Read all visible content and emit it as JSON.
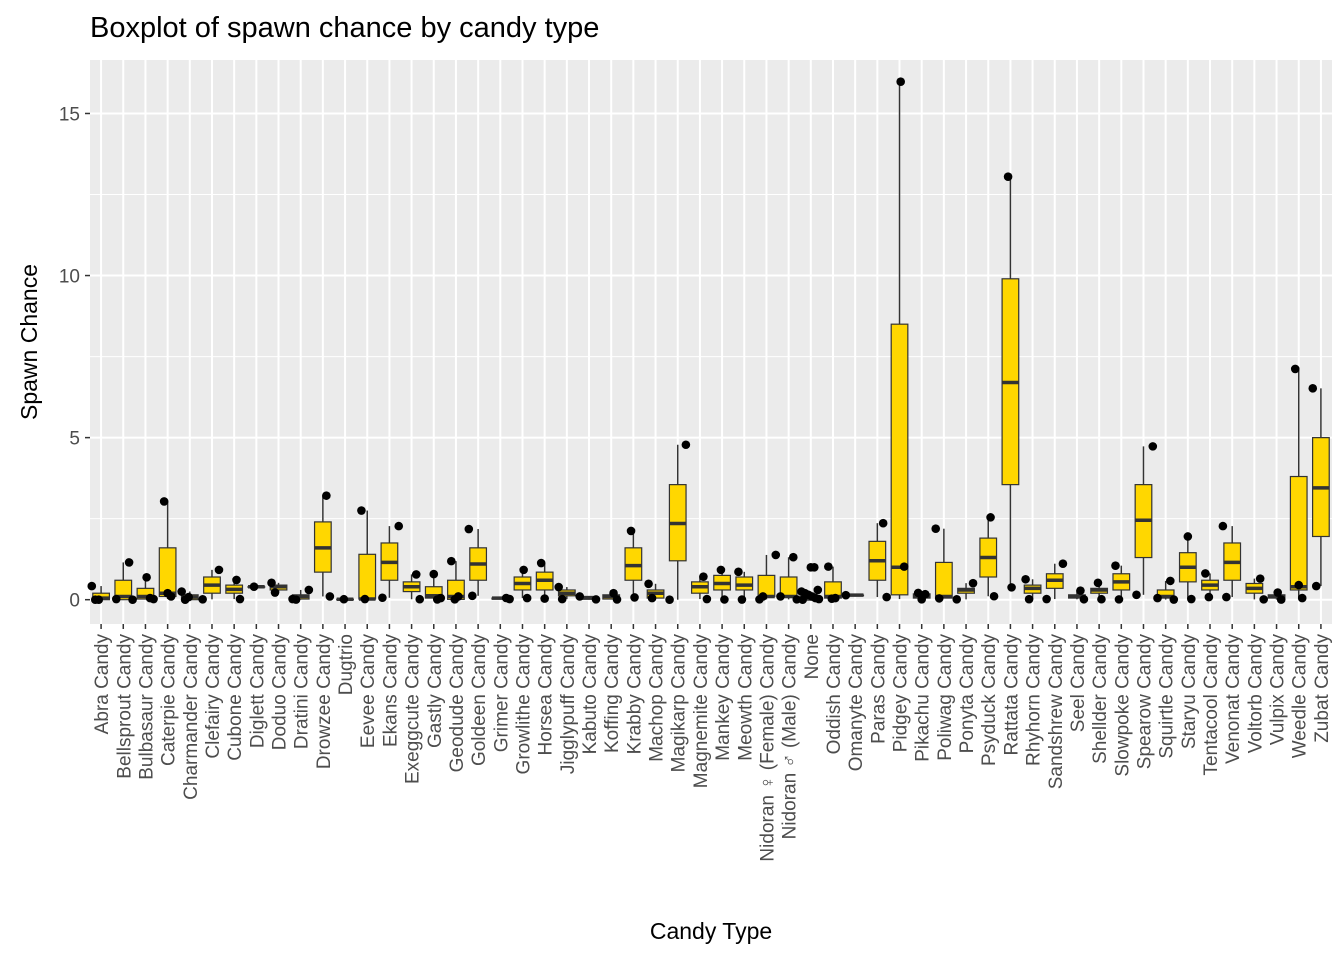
{
  "chart_data": {
    "type": "box",
    "title": "Boxplot of spawn chance by candy type",
    "xlabel": "Candy Type",
    "ylabel": "Spawn Chance",
    "ylim": [
      -0.75,
      16.65
    ],
    "y_ticks": [
      0,
      5,
      10,
      15
    ],
    "grid": true,
    "colors": {
      "panel": "#ebebeb",
      "grid": "#ffffff",
      "box_fill": "#ffd700",
      "box_stroke": "#333333",
      "point": "#000000"
    },
    "categories": [
      {
        "name": "Abra Candy",
        "q1": 0.0,
        "median": 0.05,
        "q3": 0.2,
        "wlo": 0.0,
        "whi": 0.42,
        "points": [
          0.42,
          0.0,
          0.0
        ]
      },
      {
        "name": "Bellsprout Candy",
        "q1": 0.0,
        "median": 0.1,
        "q3": 0.6,
        "wlo": 0.0,
        "whi": 1.15,
        "points": [
          1.15,
          0.0,
          0.02
        ]
      },
      {
        "name": "Bulbasaur Candy",
        "q1": 0.02,
        "median": 0.1,
        "q3": 0.35,
        "wlo": 0.01,
        "whi": 0.69,
        "points": [
          0.69,
          0.05,
          0.02
        ]
      },
      {
        "name": "Caterpie Candy",
        "q1": 0.1,
        "median": 0.2,
        "q3": 1.6,
        "wlo": 0.02,
        "whi": 3.03,
        "points": [
          3.03,
          0.2,
          0.1
        ]
      },
      {
        "name": "Charmander Candy",
        "q1": 0.0,
        "median": 0.08,
        "q3": 0.15,
        "wlo": 0.0,
        "whi": 0.253,
        "points": [
          0.25,
          0.0,
          0.08
        ]
      },
      {
        "name": "Clefairy Candy",
        "q1": 0.2,
        "median": 0.45,
        "q3": 0.7,
        "wlo": 0.012,
        "whi": 0.92,
        "points": [
          0.92,
          0.012
        ]
      },
      {
        "name": "Cubone Candy",
        "q1": 0.2,
        "median": 0.32,
        "q3": 0.45,
        "wlo": 0.02,
        "whi": 0.61,
        "points": [
          0.61,
          0.02
        ]
      },
      {
        "name": "Diglett Candy",
        "q1": 0.4,
        "median": 0.4,
        "q3": 0.4,
        "wlo": 0.4,
        "whi": 0.4,
        "points": [
          0.4
        ]
      },
      {
        "name": "Doduo Candy",
        "q1": 0.3,
        "median": 0.4,
        "q3": 0.45,
        "wlo": 0.22,
        "whi": 0.52,
        "points": [
          0.52,
          0.22
        ]
      },
      {
        "name": "Dratini Candy",
        "q1": 0.02,
        "median": 0.1,
        "q3": 0.15,
        "wlo": 0.002,
        "whi": 0.3,
        "points": [
          0.3,
          0.02,
          0.002
        ]
      },
      {
        "name": "Drowzee Candy",
        "q1": 0.85,
        "median": 1.6,
        "q3": 2.4,
        "wlo": 0.1,
        "whi": 3.21,
        "points": [
          3.21,
          0.1
        ]
      },
      {
        "name": "Dugtrio",
        "q1": 0.014,
        "median": 0.014,
        "q3": 0.014,
        "wlo": 0.014,
        "whi": 0.014,
        "points": [
          0.014
        ]
      },
      {
        "name": "Eevee Candy",
        "q1": 0.02,
        "median": 0.02,
        "q3": 1.4,
        "wlo": 0.02,
        "whi": 2.75,
        "points": [
          2.75,
          0.02
        ]
      },
      {
        "name": "Ekans Candy",
        "q1": 0.6,
        "median": 1.15,
        "q3": 1.75,
        "wlo": 0.06,
        "whi": 2.27,
        "points": [
          2.27,
          0.06
        ]
      },
      {
        "name": "Exeggcute Candy",
        "q1": 0.25,
        "median": 0.4,
        "q3": 0.55,
        "wlo": 0.014,
        "whi": 0.78,
        "points": [
          0.78,
          0.014
        ]
      },
      {
        "name": "Gastly Candy",
        "q1": 0.05,
        "median": 0.12,
        "q3": 0.4,
        "wlo": 0.006,
        "whi": 0.79,
        "points": [
          0.79,
          0.006,
          0.05
        ]
      },
      {
        "name": "Geodude Candy",
        "q1": 0.01,
        "median": 0.1,
        "q3": 0.6,
        "wlo": 0.01,
        "whi": 1.19,
        "points": [
          1.19,
          0.01,
          0.1
        ]
      },
      {
        "name": "Goldeen Candy",
        "q1": 0.6,
        "median": 1.1,
        "q3": 1.6,
        "wlo": 0.12,
        "whi": 2.18,
        "points": [
          2.18,
          0.12
        ]
      },
      {
        "name": "Grimer Candy",
        "q1": 0.02,
        "median": 0.05,
        "q3": 0.05,
        "wlo": 0.02,
        "whi": 0.052,
        "points": [
          0.052,
          0.02
        ]
      },
      {
        "name": "Growlithe Candy",
        "q1": 0.3,
        "median": 0.5,
        "q3": 0.7,
        "wlo": 0.05,
        "whi": 0.92,
        "points": [
          0.92,
          0.05
        ]
      },
      {
        "name": "Horsea Candy",
        "q1": 0.3,
        "median": 0.6,
        "q3": 0.85,
        "wlo": 0.034,
        "whi": 1.13,
        "points": [
          1.13,
          0.034
        ]
      },
      {
        "name": "Jigglypuff Candy",
        "q1": 0.12,
        "median": 0.2,
        "q3": 0.3,
        "wlo": 0.018,
        "whi": 0.39,
        "points": [
          0.39,
          0.018
        ]
      },
      {
        "name": "Kabuto Candy",
        "q1": 0.02,
        "median": 0.05,
        "q3": 0.1,
        "wlo": 0.01,
        "whi": 0.1,
        "points": [
          0.01,
          0.1
        ]
      },
      {
        "name": "Koffing Candy",
        "q1": 0.02,
        "median": 0.1,
        "q3": 0.15,
        "wlo": 0.006,
        "whi": 0.2,
        "points": [
          0.2,
          0.006
        ]
      },
      {
        "name": "Krabby Candy",
        "q1": 0.6,
        "median": 1.05,
        "q3": 1.6,
        "wlo": 0.07,
        "whi": 2.12,
        "points": [
          2.12,
          0.07
        ]
      },
      {
        "name": "Machop Candy",
        "q1": 0.05,
        "median": 0.2,
        "q3": 0.3,
        "wlo": 0.05,
        "whi": 0.49,
        "points": [
          0.49,
          0.05
        ]
      },
      {
        "name": "Magikarp Candy",
        "q1": 1.2,
        "median": 2.35,
        "q3": 3.55,
        "wlo": 0.0,
        "whi": 4.78,
        "points": [
          4.78,
          0.0
        ]
      },
      {
        "name": "Magnemite Candy",
        "q1": 0.2,
        "median": 0.4,
        "q3": 0.55,
        "wlo": 0.02,
        "whi": 0.71,
        "points": [
          0.71,
          0.02
        ]
      },
      {
        "name": "Mankey Candy",
        "q1": 0.3,
        "median": 0.5,
        "q3": 0.75,
        "wlo": 0.006,
        "whi": 0.92,
        "points": [
          0.92,
          0.006
        ]
      },
      {
        "name": "Meowth Candy",
        "q1": 0.3,
        "median": 0.45,
        "q3": 0.7,
        "wlo": 0.004,
        "whi": 0.86,
        "points": [
          0.86,
          0.004
        ]
      },
      {
        "name": "Nidoran ♀ (Female) Candy",
        "q1": 0.1,
        "median": 0.1,
        "q3": 0.75,
        "wlo": 0.01,
        "whi": 1.38,
        "points": [
          1.38,
          0.01,
          0.1
        ]
      },
      {
        "name": "Nidoran ♂ (Male) Candy",
        "q1": 0.1,
        "median": 0.1,
        "q3": 0.7,
        "wlo": 0.01,
        "whi": 1.31,
        "points": [
          1.31,
          0.01,
          0.1
        ]
      },
      {
        "name": "None",
        "q1": 0.02,
        "median": 0.02,
        "q3": 0.05,
        "wlo": 0.0,
        "whi": 0.1,
        "points": [
          1.0,
          1.0,
          0.3,
          0.25,
          0.2,
          0.15,
          0.1,
          0.05,
          0.02,
          0.0
        ]
      },
      {
        "name": "Oddish Candy",
        "q1": 0.05,
        "median": 0.1,
        "q3": 0.55,
        "wlo": 0.03,
        "whi": 1.02,
        "points": [
          1.02,
          0.03,
          0.05
        ]
      },
      {
        "name": "Omanyte Candy",
        "q1": 0.14,
        "median": 0.14,
        "q3": 0.14,
        "wlo": 0.14,
        "whi": 0.14,
        "points": [
          0.14
        ]
      },
      {
        "name": "Paras Candy",
        "q1": 0.6,
        "median": 1.2,
        "q3": 1.8,
        "wlo": 0.081,
        "whi": 2.36,
        "points": [
          2.36,
          0.081
        ]
      },
      {
        "name": "Pidgey Candy",
        "q1": 0.15,
        "median": 1.0,
        "q3": 8.5,
        "wlo": 0.02,
        "whi": 15.98,
        "points": [
          15.98,
          1.02
        ]
      },
      {
        "name": "Pikachu Candy",
        "q1": 0.05,
        "median": 0.12,
        "q3": 0.18,
        "wlo": 0.01,
        "whi": 0.21,
        "points": [
          0.21,
          0.01,
          0.17
        ]
      },
      {
        "name": "Poliwag Candy",
        "q1": 0.05,
        "median": 0.1,
        "q3": 1.15,
        "wlo": 0.04,
        "whi": 2.19,
        "points": [
          2.19,
          0.04
        ]
      },
      {
        "name": "Ponyta Candy",
        "q1": 0.2,
        "median": 0.3,
        "q3": 0.35,
        "wlo": 0.011,
        "whi": 0.51,
        "points": [
          0.51,
          0.011
        ]
      },
      {
        "name": "Psyduck Candy",
        "q1": 0.7,
        "median": 1.3,
        "q3": 1.9,
        "wlo": 0.106,
        "whi": 2.54,
        "points": [
          2.54,
          0.106
        ]
      },
      {
        "name": "Rattata Candy",
        "q1": 3.55,
        "median": 6.7,
        "q3": 9.9,
        "wlo": 0.38,
        "whi": 13.05,
        "points": [
          13.05,
          0.38
        ]
      },
      {
        "name": "Rhyhorn Candy",
        "q1": 0.2,
        "median": 0.35,
        "q3": 0.45,
        "wlo": 0.016,
        "whi": 0.63,
        "points": [
          0.63,
          0.016
        ]
      },
      {
        "name": "Sandshrew Candy",
        "q1": 0.35,
        "median": 0.6,
        "q3": 0.8,
        "wlo": 0.02,
        "whi": 1.11,
        "points": [
          1.11,
          0.02
        ]
      },
      {
        "name": "Seel Candy",
        "q1": 0.05,
        "median": 0.1,
        "q3": 0.15,
        "wlo": 0.013,
        "whi": 0.28,
        "points": [
          0.28,
          0.013
        ]
      },
      {
        "name": "Shellder Candy",
        "q1": 0.2,
        "median": 0.3,
        "q3": 0.35,
        "wlo": 0.014,
        "whi": 0.52,
        "points": [
          0.52,
          0.014
        ]
      },
      {
        "name": "Slowpoke Candy",
        "q1": 0.3,
        "median": 0.55,
        "q3": 0.8,
        "wlo": 0.01,
        "whi": 1.05,
        "points": [
          1.05,
          0.01
        ]
      },
      {
        "name": "Spearow Candy",
        "q1": 1.3,
        "median": 2.45,
        "q3": 3.55,
        "wlo": 0.15,
        "whi": 4.73,
        "points": [
          4.73,
          0.15
        ]
      },
      {
        "name": "Squirtle Candy",
        "q1": 0.05,
        "median": 0.1,
        "q3": 0.3,
        "wlo": 0.004,
        "whi": 0.58,
        "points": [
          0.58,
          0.004,
          0.05
        ]
      },
      {
        "name": "Staryu Candy",
        "q1": 0.55,
        "median": 1.0,
        "q3": 1.45,
        "wlo": 0.02,
        "whi": 1.95,
        "points": [
          1.95,
          0.02
        ]
      },
      {
        "name": "Tentacool Candy",
        "q1": 0.3,
        "median": 0.45,
        "q3": 0.6,
        "wlo": 0.08,
        "whi": 0.81,
        "points": [
          0.81,
          0.08
        ]
      },
      {
        "name": "Venonat Candy",
        "q1": 0.6,
        "median": 1.15,
        "q3": 1.75,
        "wlo": 0.081,
        "whi": 2.27,
        "points": [
          2.27,
          0.081
        ]
      },
      {
        "name": "Voltorb Candy",
        "q1": 0.2,
        "median": 0.35,
        "q3": 0.5,
        "wlo": 0.01,
        "whi": 0.65,
        "points": [
          0.65,
          0.01
        ]
      },
      {
        "name": "Vulpix Candy",
        "q1": 0.05,
        "median": 0.1,
        "q3": 0.15,
        "wlo": 0.003,
        "whi": 0.22,
        "points": [
          0.22,
          0.003
        ]
      },
      {
        "name": "Weedle Candy",
        "q1": 0.3,
        "median": 0.4,
        "q3": 3.8,
        "wlo": 0.05,
        "whi": 7.12,
        "points": [
          7.12,
          0.45,
          0.05
        ]
      },
      {
        "name": "Zubat Candy",
        "q1": 1.95,
        "median": 3.45,
        "q3": 5.0,
        "wlo": 0.42,
        "whi": 6.52,
        "points": [
          6.52,
          0.42
        ]
      }
    ]
  }
}
